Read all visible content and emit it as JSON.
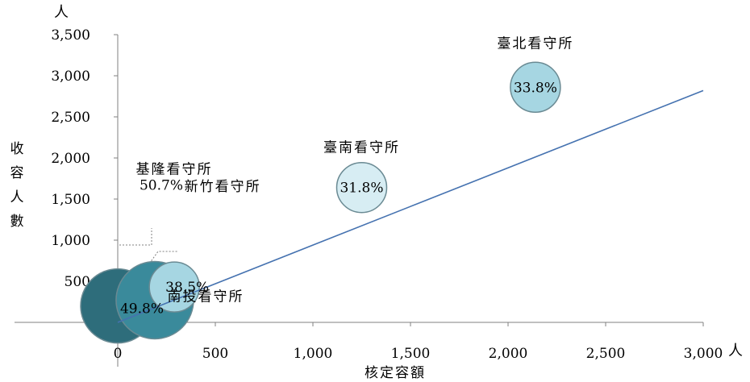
{
  "chart_data": {
    "type": "scatter",
    "subtype": "bubble",
    "xlabel": "核定容額",
    "ylabel": "收容人數",
    "x_unit": "人",
    "y_unit": "人",
    "xlim": [
      0,
      3000
    ],
    "ylim": [
      0,
      3500
    ],
    "x_ticks": [
      "0",
      "500",
      "1,000",
      "1,500",
      "2,000",
      "2,500",
      "3,000"
    ],
    "y_ticks": [
      "500",
      "1,000",
      "1,500",
      "2,000",
      "2,500",
      "3,000",
      "3,500"
    ],
    "grid": false,
    "points": [
      {
        "label": "基隆看守所",
        "rate": "50.7%",
        "x": 0,
        "y": 200,
        "color": "#2e6d7b"
      },
      {
        "label": "南投看守所",
        "rate": "49.8%",
        "x": 190,
        "y": 270,
        "color": "#3a8a9b"
      },
      {
        "label": "新竹看守所",
        "rate": "38.5%",
        "x": 290,
        "y": 430,
        "color": "#a6d6e2"
      },
      {
        "label": "臺南看守所",
        "rate": "31.8%",
        "x": 1250,
        "y": 1640,
        "color": "#d7edf3"
      },
      {
        "label": "臺北看守所",
        "rate": "33.8%",
        "x": 2140,
        "y": 2860,
        "color": "#a6d6e2"
      }
    ],
    "trendline": {
      "x": [
        0,
        3000
      ],
      "y": [
        0,
        2820
      ],
      "color": "#4572b0"
    }
  }
}
